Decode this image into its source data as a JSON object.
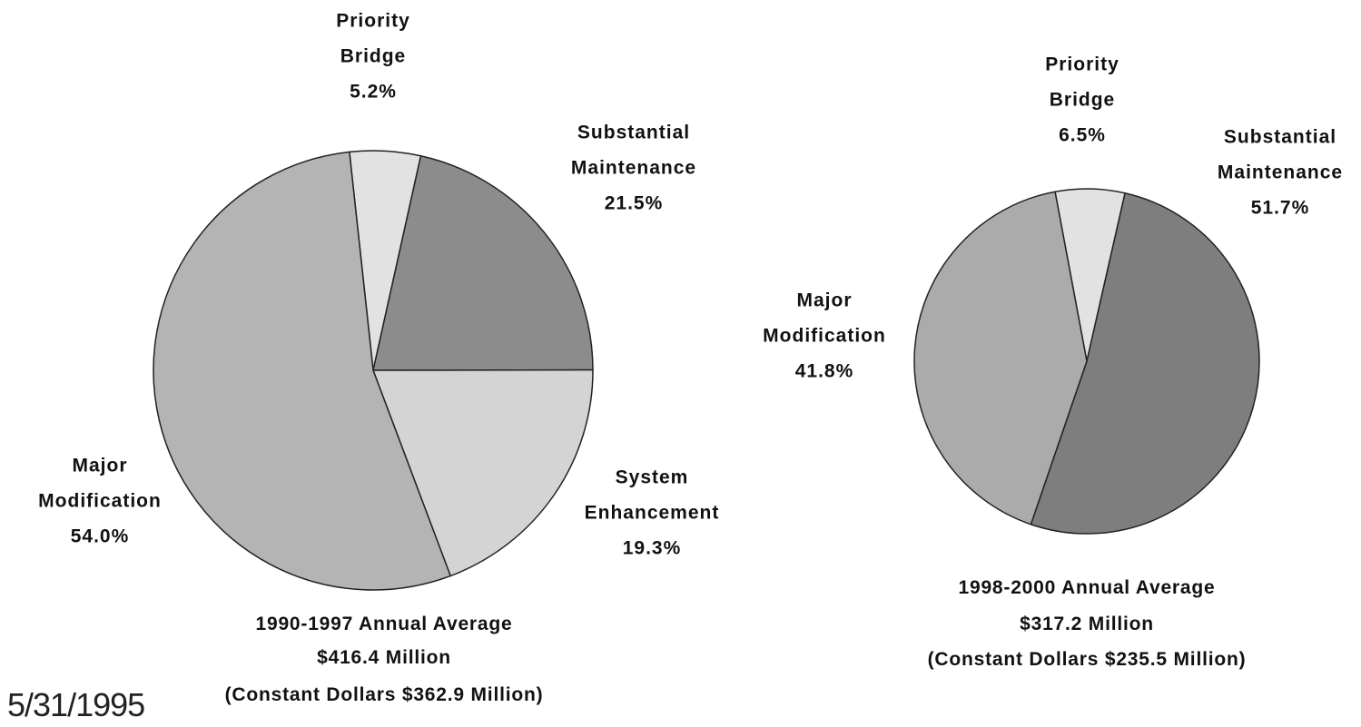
{
  "chart_data": [
    {
      "type": "pie",
      "categories": [
        "Priority Bridge",
        "Substantial Maintenance",
        "System Enhancement",
        "Major Modification"
      ],
      "values": [
        5.2,
        21.5,
        19.3,
        54.0
      ],
      "value_labels": [
        "5.2%",
        "21.5%",
        "19.3%",
        "54.0%"
      ],
      "colors": [
        "#e2e2e2",
        "#8c8c8c",
        "#d4d4d4",
        "#b4b4b4"
      ],
      "caption": [
        "1990-1997 Annual Average",
        "$416.4 Million",
        "(Constant Dollars $362.9 Million)"
      ]
    },
    {
      "type": "pie",
      "categories": [
        "Priority Bridge",
        "Substantial Maintenance",
        "Major Modification"
      ],
      "values": [
        6.5,
        51.7,
        41.8
      ],
      "value_labels": [
        "6.5%",
        "51.7%",
        "41.8%"
      ],
      "colors": [
        "#e2e2e2",
        "#7e7e7e",
        "#ababab"
      ],
      "caption": [
        "1998-2000 Annual Average",
        "$317.2 Million",
        "(Constant Dollars $235.5 Million)"
      ]
    }
  ],
  "date": "5/31/1995"
}
